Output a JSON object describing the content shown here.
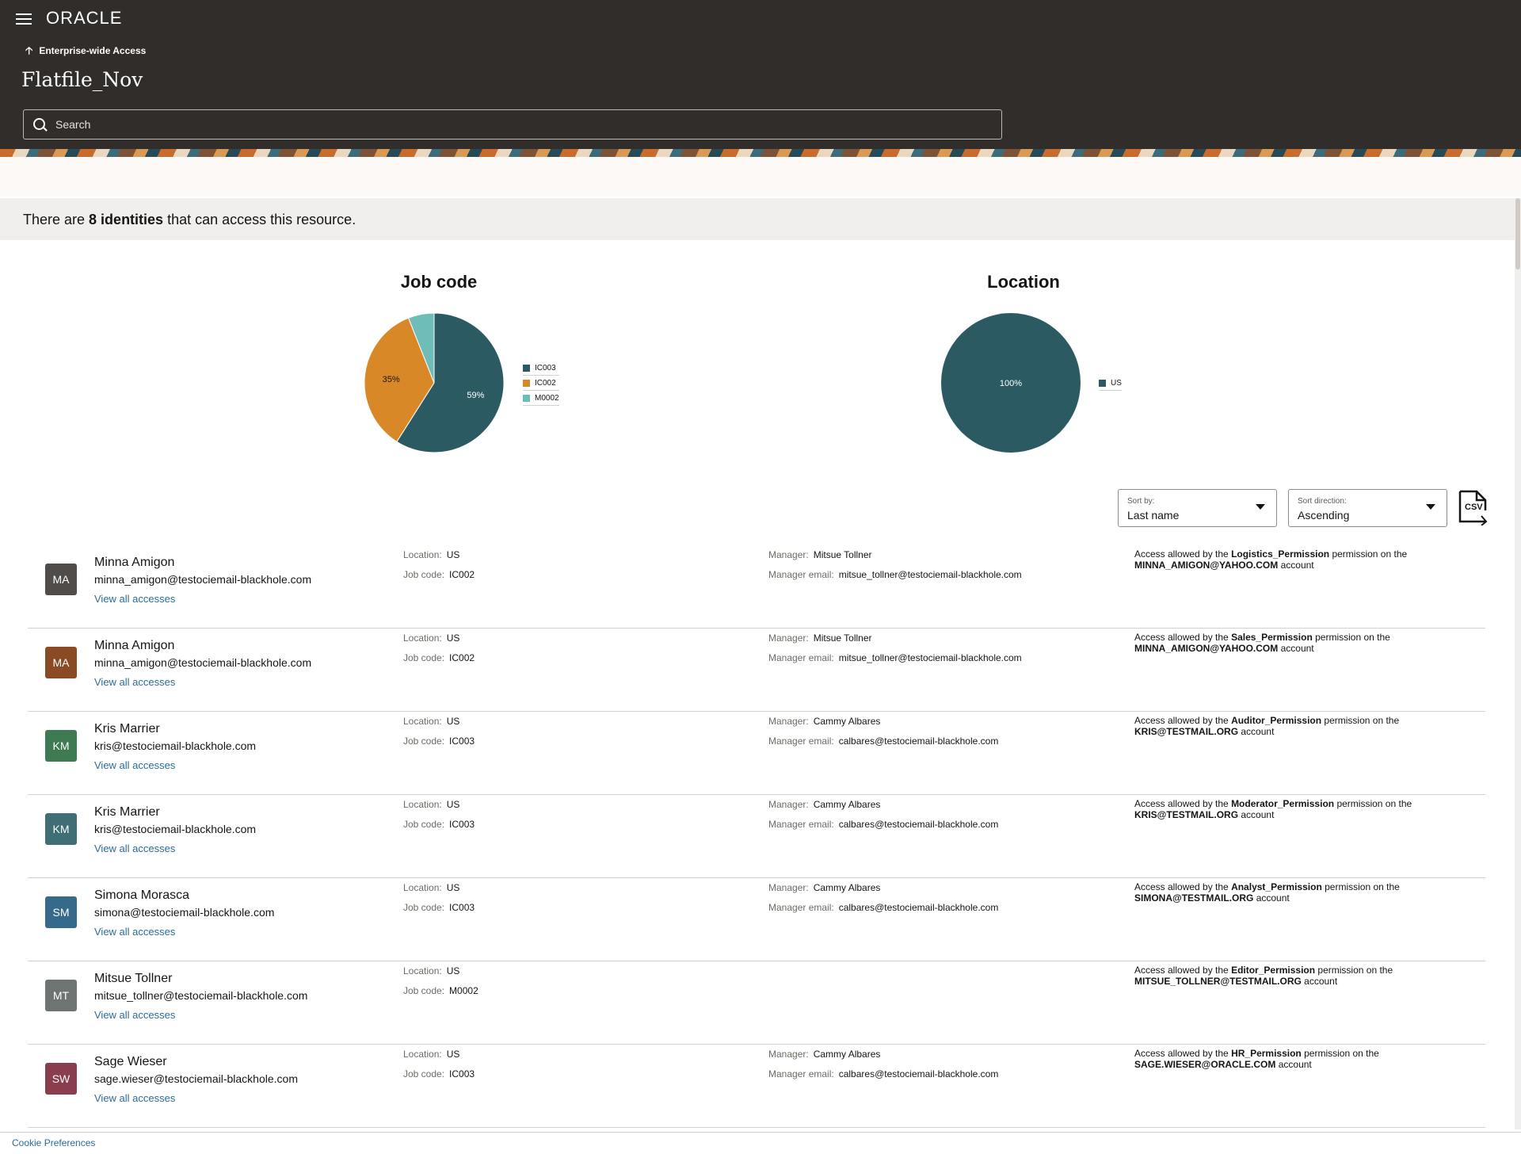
{
  "header": {
    "logo": "ORACLE",
    "back_label": "Enterprise-wide Access",
    "title": "Flatfile_Nov",
    "search_placeholder": "Search"
  },
  "summary": {
    "prefix": "There are ",
    "count_text": "8 identities",
    "suffix": " that can access this resource."
  },
  "charts": {
    "job_code": {
      "title": "Job code",
      "legend": [
        "IC003",
        "IC002",
        "M0002"
      ],
      "labels": [
        "59%",
        "35%"
      ]
    },
    "location": {
      "title": "Location",
      "legend": [
        "US"
      ],
      "labels": [
        "100%"
      ]
    }
  },
  "chart_data": [
    {
      "type": "pie",
      "title": "Job code",
      "categories": [
        "IC003",
        "IC002",
        "M0002"
      ],
      "values": [
        59,
        35,
        6
      ],
      "colors": [
        "#2c5a63",
        "#d98827",
        "#6fbdb8"
      ],
      "legend": "right"
    },
    {
      "type": "pie",
      "title": "Location",
      "categories": [
        "US"
      ],
      "values": [
        100
      ],
      "colors": [
        "#2c5a63"
      ],
      "legend": "right"
    }
  ],
  "controls": {
    "sort_by_label": "Sort by:",
    "sort_by_value": "Last name",
    "sort_dir_label": "Sort direction:",
    "sort_dir_value": "Ascending",
    "csv_label": "CSV"
  },
  "labels": {
    "location": "Location:",
    "job_code": "Job code:",
    "manager": "Manager:",
    "manager_email": "Manager email:",
    "view_all": "View all accesses",
    "access_prefix": "Access allowed by the ",
    "access_mid": " permission on the",
    "access_suffix": " account"
  },
  "identities": [
    {
      "initials": "MA",
      "name": "Minna Amigon",
      "email": "minna_amigon@testociemail-blackhole.com",
      "location": "US",
      "job_code": "IC002",
      "manager": "Mitsue Tollner",
      "manager_email": "mitsue_tollner@testociemail-blackhole.com",
      "permission": "Logistics_Permission",
      "account": "MINNA_AMIGON@YAHOO.COM",
      "avatar_color": "#4f4c49"
    },
    {
      "initials": "MA",
      "name": "Minna Amigon",
      "email": "minna_amigon@testociemail-blackhole.com",
      "location": "US",
      "job_code": "IC002",
      "manager": "Mitsue Tollner",
      "manager_email": "mitsue_tollner@testociemail-blackhole.com",
      "permission": "Sales_Permission",
      "account": "MINNA_AMIGON@YAHOO.COM",
      "avatar_color": "#8a4a24"
    },
    {
      "initials": "KM",
      "name": "Kris Marrier",
      "email": "kris@testociemail-blackhole.com",
      "location": "US",
      "job_code": "IC003",
      "manager": "Cammy Albares",
      "manager_email": "calbares@testociemail-blackhole.com",
      "permission": "Auditor_Permission",
      "account": "KRIS@TESTMAIL.ORG",
      "avatar_color": "#3e7a52"
    },
    {
      "initials": "KM",
      "name": "Kris Marrier",
      "email": "kris@testociemail-blackhole.com",
      "location": "US",
      "job_code": "IC003",
      "manager": "Cammy Albares",
      "manager_email": "calbares@testociemail-blackhole.com",
      "permission": "Moderator_Permission",
      "account": "KRIS@TESTMAIL.ORG",
      "avatar_color": "#3f6f74"
    },
    {
      "initials": "SM",
      "name": "Simona Morasca",
      "email": "simona@testociemail-blackhole.com",
      "location": "US",
      "job_code": "IC003",
      "manager": "Cammy Albares",
      "manager_email": "calbares@testociemail-blackhole.com",
      "permission": "Analyst_Permission",
      "account": "SIMONA@TESTMAIL.ORG",
      "avatar_color": "#356a8a"
    },
    {
      "initials": "MT",
      "name": "Mitsue Tollner",
      "email": "mitsue_tollner@testociemail-blackhole.com",
      "location": "US",
      "job_code": "M0002",
      "manager": "",
      "manager_email": "",
      "permission": "Editor_Permission",
      "account": "MITSUE_TOLLNER@TESTMAIL.ORG",
      "avatar_color": "#6e7471"
    },
    {
      "initials": "SW",
      "name": "Sage Wieser",
      "email": "sage.wieser@testociemail-blackhole.com",
      "location": "US",
      "job_code": "IC003",
      "manager": "Cammy Albares",
      "manager_email": "calbares@testociemail-blackhole.com",
      "permission": "HR_Permission",
      "account": "SAGE.WIESER@ORACLE.COM",
      "avatar_color": "#8a3d4c"
    }
  ],
  "footer": {
    "cookie": "Cookie Preferences"
  }
}
